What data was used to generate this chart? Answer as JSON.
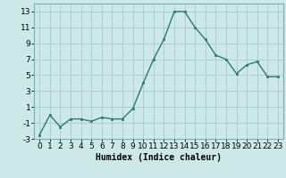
{
  "x": [
    0,
    1,
    2,
    3,
    4,
    5,
    6,
    7,
    8,
    9,
    10,
    11,
    12,
    13,
    14,
    15,
    16,
    17,
    18,
    19,
    20,
    21,
    22,
    23
  ],
  "y": [
    -2.5,
    0.0,
    -1.5,
    -0.5,
    -0.5,
    -0.8,
    -0.3,
    -0.5,
    -0.5,
    0.8,
    4.0,
    7.0,
    9.5,
    13.0,
    13.0,
    11.0,
    9.5,
    7.5,
    7.0,
    5.2,
    6.3,
    6.7,
    4.8,
    4.8
  ],
  "line_color": "#2d7a6e",
  "marker_color": "#2d7a6e",
  "bg_color": "#cce8e8",
  "grid_color": "#aacfcf",
  "xlabel": "Humidex (Indice chaleur)",
  "ylim": [
    -3,
    14
  ],
  "xlim": [
    -0.5,
    23.5
  ],
  "yticks": [
    -3,
    -1,
    1,
    3,
    5,
    7,
    9,
    11,
    13
  ],
  "xticks": [
    0,
    1,
    2,
    3,
    4,
    5,
    6,
    7,
    8,
    9,
    10,
    11,
    12,
    13,
    14,
    15,
    16,
    17,
    18,
    19,
    20,
    21,
    22,
    23
  ],
  "xlabel_fontsize": 7,
  "tick_fontsize": 6.5
}
